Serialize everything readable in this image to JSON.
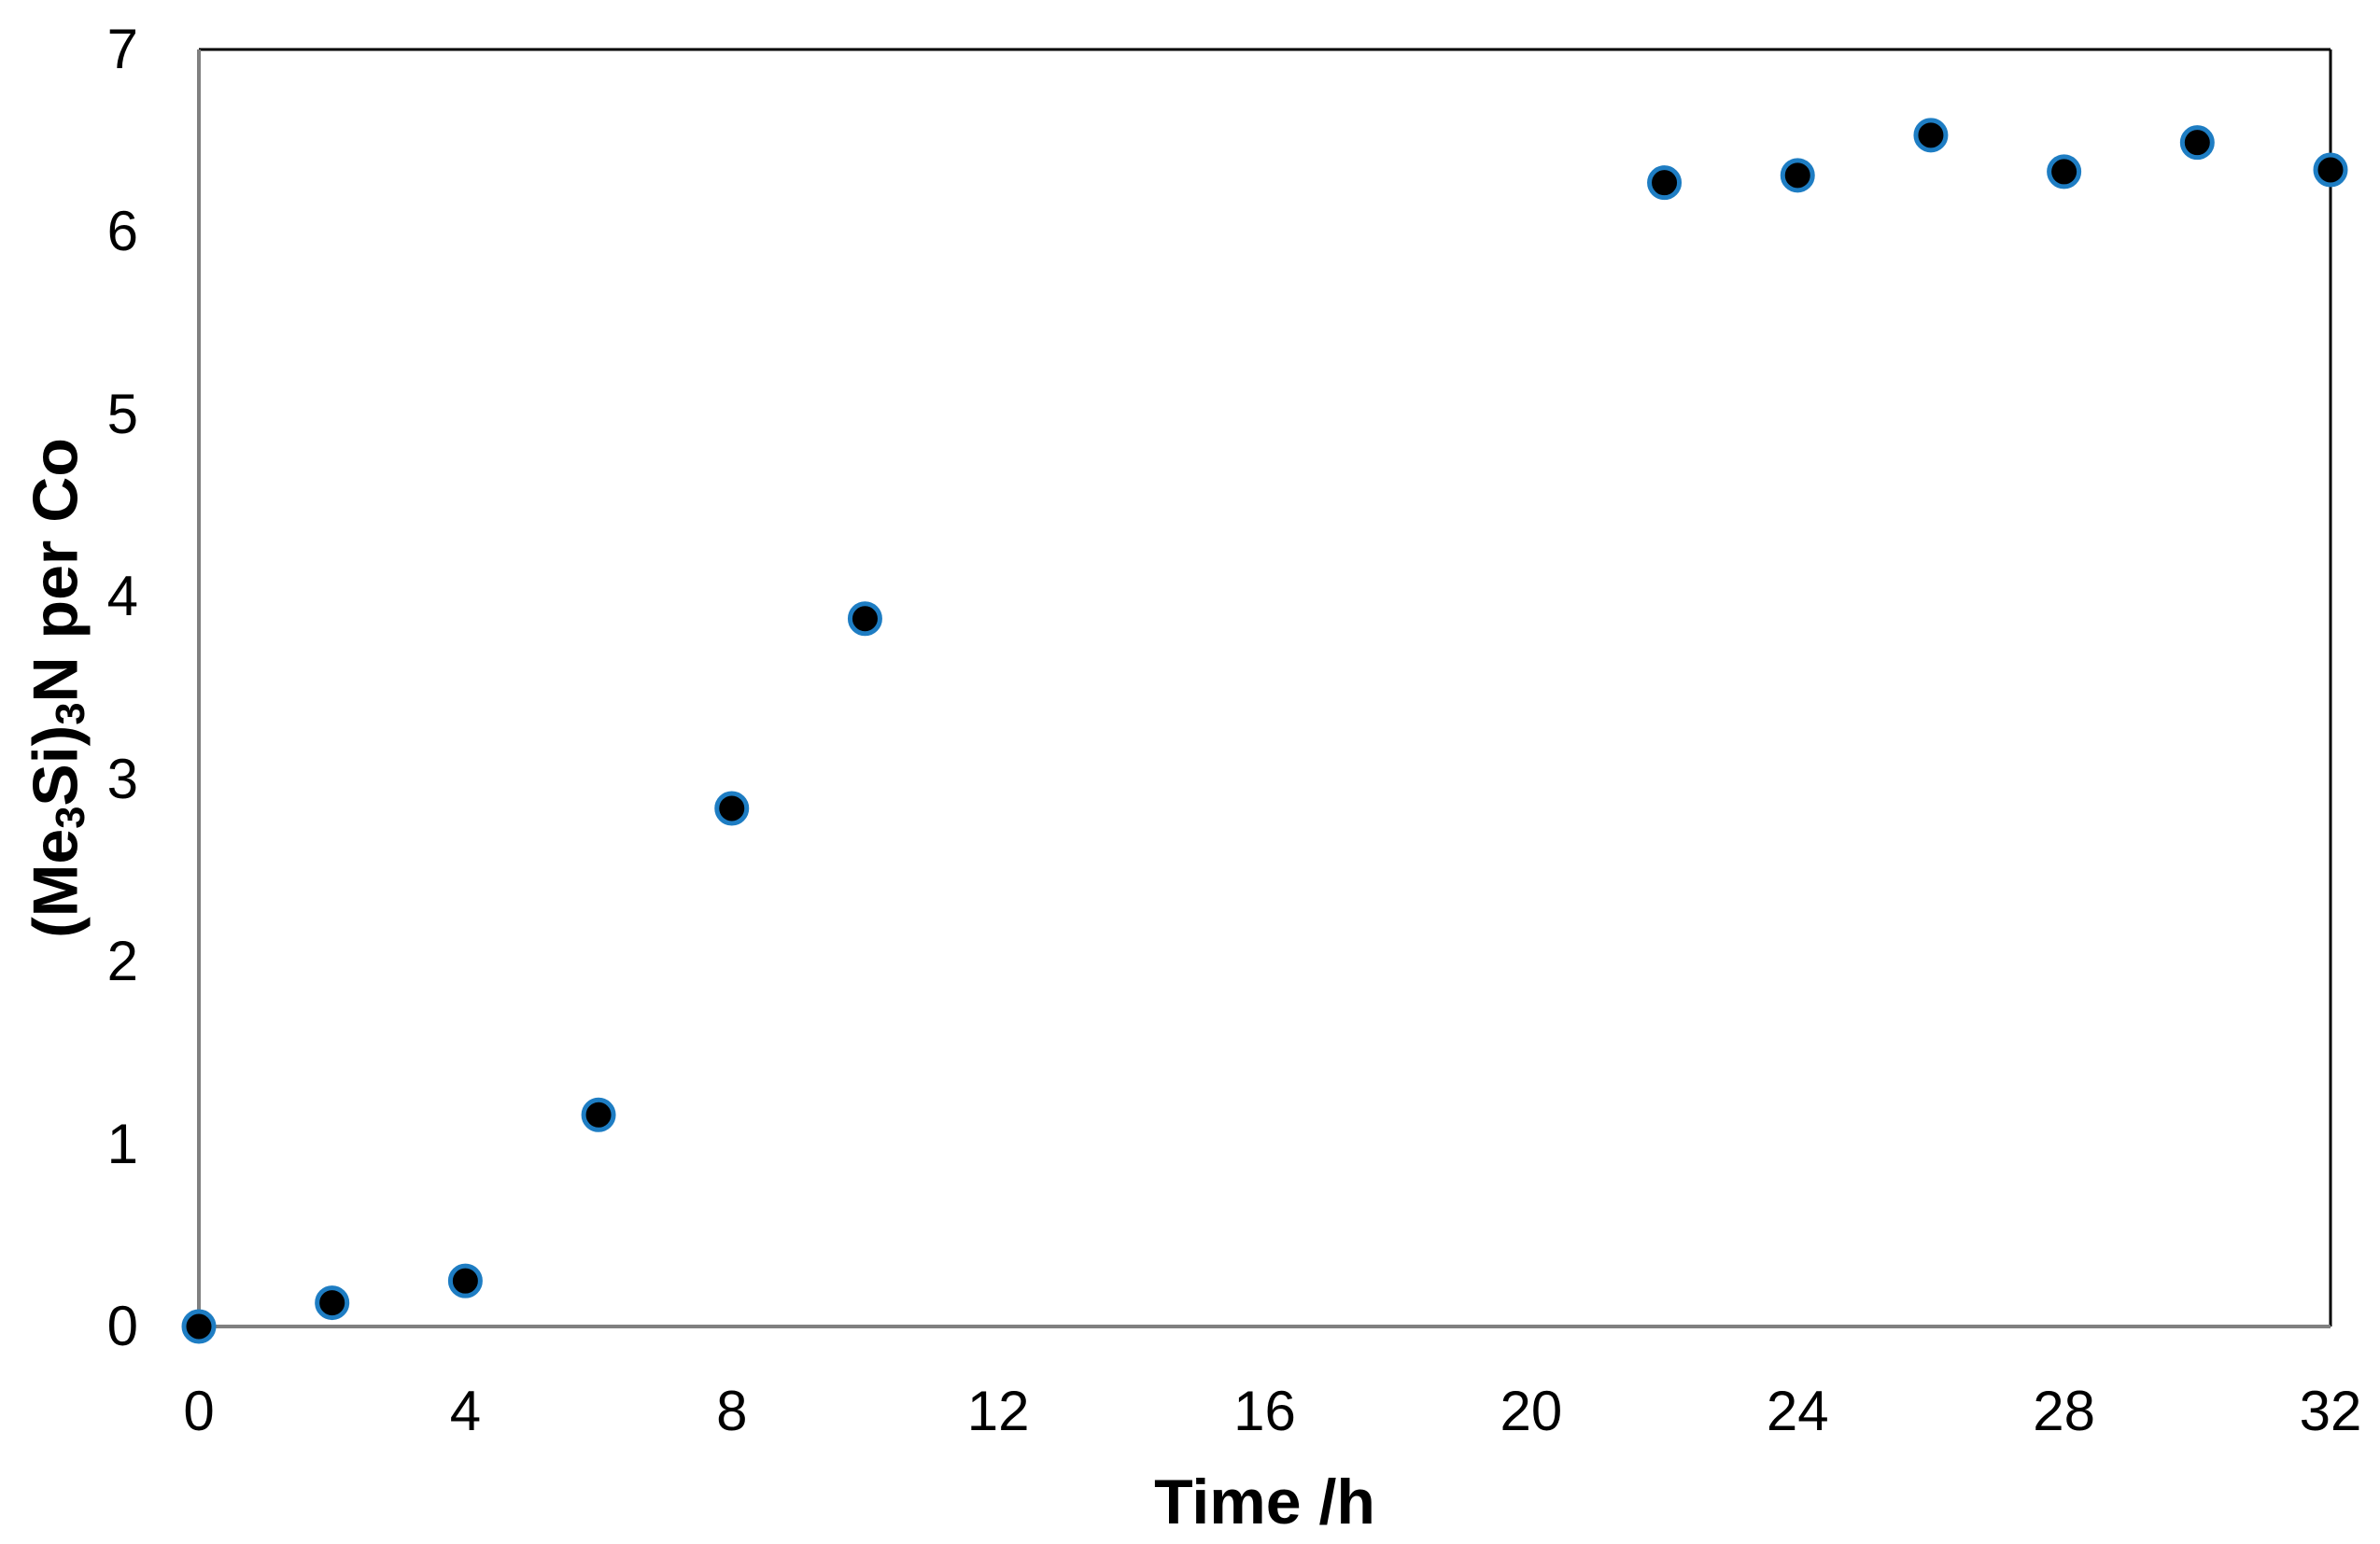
{
  "chart_data": {
    "type": "scatter",
    "title": "",
    "xlabel": "Time /h",
    "ylabel": "(Me3Si)3N per Co",
    "ylabel_parts": [
      {
        "text": "(Me",
        "sub": false
      },
      {
        "text": "3",
        "sub": true
      },
      {
        "text": "Si)",
        "sub": false
      },
      {
        "text": "3",
        "sub": true
      },
      {
        "text": "N per Co",
        "sub": false
      }
    ],
    "xlim": [
      0,
      32
    ],
    "ylim": [
      0,
      7
    ],
    "xticks": [
      0,
      4,
      8,
      12,
      16,
      20,
      24,
      28,
      32
    ],
    "yticks": [
      0,
      1,
      2,
      3,
      4,
      5,
      6,
      7
    ],
    "grid": false,
    "legend_position": "none",
    "series": [
      {
        "points": [
          {
            "x": 0,
            "y": 0.0
          },
          {
            "x": 2,
            "y": 0.13
          },
          {
            "x": 4,
            "y": 0.25
          },
          {
            "x": 6,
            "y": 1.16
          },
          {
            "x": 8,
            "y": 2.84
          },
          {
            "x": 10,
            "y": 3.88
          },
          {
            "x": 22,
            "y": 6.27
          },
          {
            "x": 24,
            "y": 6.31
          },
          {
            "x": 26,
            "y": 6.53
          },
          {
            "x": 28,
            "y": 6.33
          },
          {
            "x": 30,
            "y": 6.49
          },
          {
            "x": 32,
            "y": 6.34
          }
        ]
      }
    ],
    "colors": {
      "marker_fill": "#000000",
      "marker_ring": "#1e7dc3",
      "axis_line_left_bottom": "#808080",
      "plot_border_top_right": "#000000",
      "text": "#000000"
    }
  }
}
